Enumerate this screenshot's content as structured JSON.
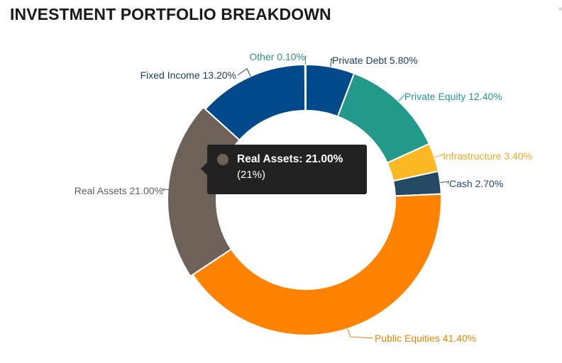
{
  "title": "INVESTMENT PORTFOLIO BREAKDOWN",
  "chart_data": {
    "type": "pie",
    "variant": "donut",
    "title": "INVESTMENT PORTFOLIO BREAKDOWN",
    "slices": [
      {
        "name": "Private Debt",
        "value": 5.8,
        "label": "Private Debt 5.80%",
        "color": "#004a8c"
      },
      {
        "name": "Private Equity",
        "value": 12.4,
        "label": "Private Equity 12.40%",
        "color": "#23998b"
      },
      {
        "name": "Infrastructure",
        "value": 3.4,
        "label": "Infrastructure 3.40%",
        "color": "#fbb822"
      },
      {
        "name": "Cash",
        "value": 2.7,
        "label": "Cash 2.70%",
        "color": "#244a63"
      },
      {
        "name": "Public Equities",
        "value": 41.4,
        "label": "Public Equities 41.40%",
        "color": "#ff8300"
      },
      {
        "name": "Real Assets",
        "value": 21.0,
        "label": "Real Assets 21.00%",
        "color": "#6e6157"
      },
      {
        "name": "Fixed Income",
        "value": 13.2,
        "label": "Fixed Income 13.20%",
        "color": "#004a8c"
      },
      {
        "name": "Other",
        "value": 0.1,
        "label": "Other 0.10%",
        "color": "#2b8f84"
      }
    ],
    "label_colors": {
      "Private Debt": "#1c3e63",
      "Private Equity": "#23998b",
      "Infrastructure": "#f5a623",
      "Cash": "#244a63",
      "Public Equities": "#f08200",
      "Real Assets": "#5d5d5d",
      "Fixed Income": "#1c3e63",
      "Other": "#2b8f84"
    },
    "tooltip": {
      "series": "Real Assets",
      "line1": "Real Assets: 21.00%",
      "line2": "(21%)",
      "dot_color": "#6e6157"
    },
    "hovered": "Real Assets"
  }
}
